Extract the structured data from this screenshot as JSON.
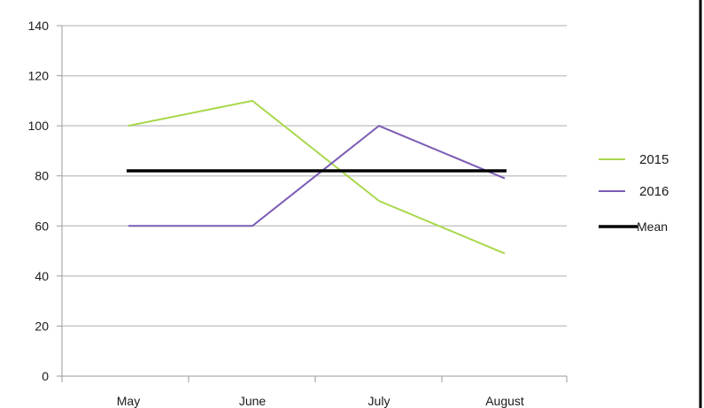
{
  "chart_data": {
    "type": "line",
    "categories": [
      "May",
      "June",
      "July",
      "August"
    ],
    "series": [
      {
        "name": "2015",
        "values": [
          100,
          110,
          70,
          49
        ],
        "color": "#a8d84c"
      },
      {
        "name": "2016",
        "values": [
          60,
          60,
          100,
          79
        ],
        "color": "#7c5cb6"
      },
      {
        "name": "Mean",
        "values": [
          82,
          82,
          82,
          82
        ],
        "color": "#000000"
      }
    ],
    "yticks": [
      "0",
      "20",
      "40",
      "60",
      "80",
      "100",
      "120",
      "140"
    ],
    "ylim": [
      0,
      140
    ],
    "grid": true,
    "legend_position": "right",
    "title": "",
    "xlabel": "",
    "ylabel": ""
  }
}
